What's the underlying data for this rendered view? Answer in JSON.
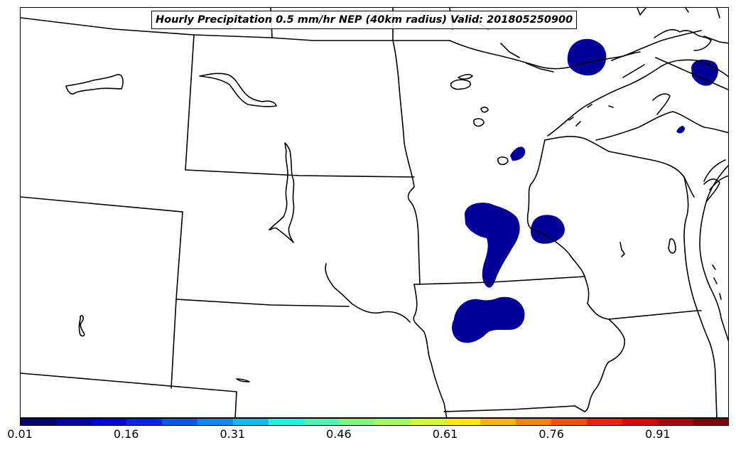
{
  "title": "Hourly Precipitation 0.5 mm/hr NEP (40km radius) Valid: 201805250900",
  "colorbar": {
    "colors": [
      "#00007f",
      "#0000b3",
      "#0000ee",
      "#0023ff",
      "#0057ff",
      "#008bff",
      "#00c0ff",
      "#13ffe3",
      "#43ffb4",
      "#73ff84",
      "#a3ff54",
      "#d4ff23",
      "#ffeb00",
      "#ffb700",
      "#ff8200",
      "#ff4e00",
      "#ff1a00",
      "#e60000",
      "#b30000",
      "#800000"
    ],
    "tick_labels": [
      "0.01",
      "0.16",
      "0.31",
      "0.46",
      "0.61",
      "0.76",
      "0.91"
    ]
  },
  "precip_fill_color": "#000099"
}
